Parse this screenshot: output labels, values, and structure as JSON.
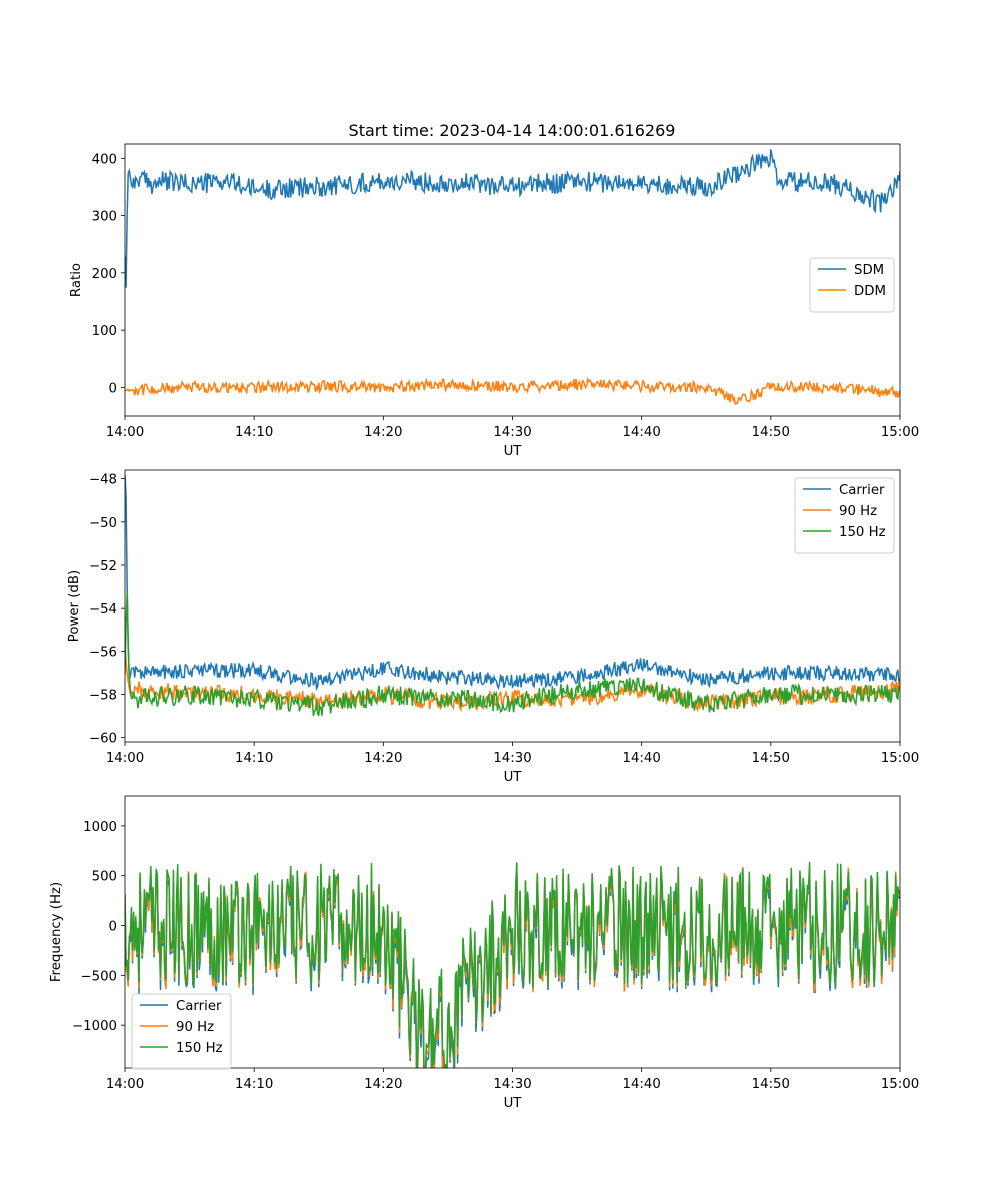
{
  "figure": {
    "title": "Start time: 2023-04-14 14:00:01.616269"
  },
  "colors": {
    "blue": "#1f77b4",
    "orange": "#ff7f0e",
    "green": "#2ca02c"
  },
  "chart_data": [
    {
      "type": "line",
      "title": "Start time: 2023-04-14 14:00:01.616269",
      "xlabel": "UT",
      "ylabel": "Ratio",
      "xlim": [
        "14:00",
        "15:00"
      ],
      "ylim": [
        -50,
        425
      ],
      "x_ticks": [
        "14:00",
        "14:10",
        "14:20",
        "14:30",
        "14:40",
        "14:50",
        "15:00"
      ],
      "y_ticks": [
        0,
        100,
        200,
        300,
        400
      ],
      "legend": "center-right",
      "grid": false,
      "series": [
        {
          "name": "SDM",
          "color": "#1f77b4",
          "x_minutes": [
            0,
            0.1,
            0.2,
            0.3,
            0.45,
            0.6,
            1,
            2,
            3,
            5,
            8,
            10,
            15,
            20,
            25,
            30,
            35,
            40,
            45,
            50,
            50.5,
            55,
            58.5,
            60
          ],
          "values": [
            230,
            165,
            365,
            385,
            360,
            350,
            365,
            355,
            360,
            355,
            360,
            345,
            350,
            360,
            358,
            352,
            360,
            355,
            350,
            402,
            360,
            355,
            320,
            362
          ],
          "noise_amplitude": 18
        },
        {
          "name": "DDM",
          "color": "#ff7f0e",
          "x_minutes": [
            0,
            5,
            10,
            15,
            20,
            25,
            30,
            35,
            40,
            45,
            47.5,
            50,
            55,
            60
          ],
          "values": [
            -5,
            0,
            0,
            2,
            0,
            5,
            0,
            5,
            2,
            0,
            -25,
            0,
            0,
            -10
          ],
          "noise_amplitude": 10
        }
      ]
    },
    {
      "type": "line",
      "xlabel": "UT",
      "ylabel": "Power (dB)",
      "xlim": [
        "14:00",
        "15:00"
      ],
      "ylim": [
        -60.2,
        -47.6
      ],
      "x_ticks": [
        "14:00",
        "14:10",
        "14:20",
        "14:30",
        "14:40",
        "14:50",
        "15:00"
      ],
      "y_ticks": [
        -48,
        -50,
        -52,
        -54,
        -56,
        -58,
        -60
      ],
      "legend": "top-right",
      "grid": false,
      "series": [
        {
          "name": "Carrier",
          "color": "#1f77b4",
          "x_minutes": [
            0,
            0.1,
            0.2,
            0.35,
            0.5,
            1,
            5,
            10,
            15,
            20,
            25,
            30,
            35,
            40,
            45,
            50,
            55,
            60
          ],
          "values": [
            -47.8,
            -49.0,
            -55.0,
            -57.5,
            -56.8,
            -57.0,
            -56.9,
            -56.9,
            -57.4,
            -56.8,
            -57.2,
            -57.4,
            -57.2,
            -56.6,
            -57.3,
            -57.0,
            -57.0,
            -57.1
          ],
          "noise_amplitude": 0.35
        },
        {
          "name": "90 Hz",
          "color": "#ff7f0e",
          "x_minutes": [
            0,
            0.2,
            0.4,
            1,
            5,
            10,
            15,
            20,
            25,
            30,
            35,
            40,
            45,
            50,
            55,
            60
          ],
          "values": [
            -55.8,
            -57.3,
            -58.0,
            -57.8,
            -57.9,
            -58.0,
            -58.3,
            -58.0,
            -58.4,
            -58.2,
            -58.2,
            -57.8,
            -58.4,
            -58.1,
            -58.0,
            -57.8
          ],
          "noise_amplitude": 0.4
        },
        {
          "name": "150 Hz",
          "color": "#2ca02c",
          "x_minutes": [
            0,
            0.15,
            0.3,
            0.5,
            1,
            5,
            10,
            15,
            20,
            25,
            30,
            35,
            40,
            45,
            50,
            55,
            60
          ],
          "values": [
            -57.0,
            -52.8,
            -57.0,
            -58.2,
            -58.2,
            -58.0,
            -58.2,
            -58.6,
            -58.0,
            -58.2,
            -58.4,
            -57.8,
            -57.6,
            -58.5,
            -58.0,
            -58.0,
            -58.0
          ],
          "noise_amplitude": 0.45
        }
      ]
    },
    {
      "type": "line",
      "xlabel": "UT",
      "ylabel": "Frequency (Hz)",
      "xlim": [
        "14:00",
        "15:00"
      ],
      "ylim": [
        -1430,
        1300
      ],
      "x_ticks": [
        "14:00",
        "14:10",
        "14:20",
        "14:30",
        "14:40",
        "14:50",
        "15:00"
      ],
      "y_ticks": [
        1000,
        500,
        0,
        -500,
        -1000
      ],
      "legend": "bottom-left",
      "grid": false,
      "series": [
        {
          "name": "Carrier",
          "color": "#1f77b4",
          "x_minutes": [
            0,
            10,
            20,
            23.4,
            30,
            40,
            50,
            60
          ],
          "values": [
            0,
            0,
            0,
            -1290,
            0,
            0,
            0,
            0
          ],
          "noise_amplitude": 380,
          "offset": -60
        },
        {
          "name": "90 Hz",
          "color": "#ff7f0e",
          "x_minutes": [
            0,
            10,
            20,
            23.4,
            30,
            40,
            50,
            60
          ],
          "values": [
            0,
            0,
            0,
            -1250,
            0,
            0,
            0,
            0
          ],
          "noise_amplitude": 380,
          "offset": -30
        },
        {
          "name": "150 Hz",
          "color": "#2ca02c",
          "x_minutes": [
            0,
            10,
            20,
            23.4,
            30,
            40,
            50,
            60
          ],
          "values": [
            0,
            0,
            0,
            -1220,
            0,
            0,
            0,
            0
          ],
          "noise_amplitude": 380,
          "offset": 0
        }
      ]
    }
  ]
}
